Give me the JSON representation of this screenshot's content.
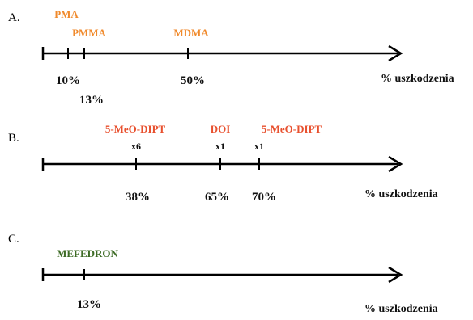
{
  "axis_label": "% uszkodzenia",
  "colors": {
    "orange": "#f08a2c",
    "red": "#e8502e",
    "green": "#3d6b25",
    "axis": "#000000"
  },
  "panels": {
    "A": {
      "letter": "A.",
      "drugs": [
        {
          "name": "PMA",
          "color": "orange"
        },
        {
          "name": "PMMA",
          "color": "orange"
        },
        {
          "name": "MDMA",
          "color": "orange"
        }
      ],
      "ticks": [
        {
          "value": 10,
          "label": "10%"
        },
        {
          "value": 13,
          "label": "13%"
        },
        {
          "value": 50,
          "label": "50%"
        }
      ]
    },
    "B": {
      "letter": "B.",
      "drugs": [
        {
          "name": "5-MeO-DIPT",
          "mult": "x6",
          "color": "red"
        },
        {
          "name": "DOI",
          "mult": "x1",
          "color": "red"
        },
        {
          "name": "5-MeO-DIPT",
          "mult": "x1",
          "color": "red"
        }
      ],
      "ticks": [
        {
          "value": 38,
          "label": "38%"
        },
        {
          "value": 65,
          "label": "65%"
        },
        {
          "value": 70,
          "label": "70%"
        }
      ]
    },
    "C": {
      "letter": "C.",
      "drugs": [
        {
          "name": "MEFEDRON",
          "color": "green"
        }
      ],
      "ticks": [
        {
          "value": 13,
          "label": "13%"
        }
      ]
    }
  }
}
